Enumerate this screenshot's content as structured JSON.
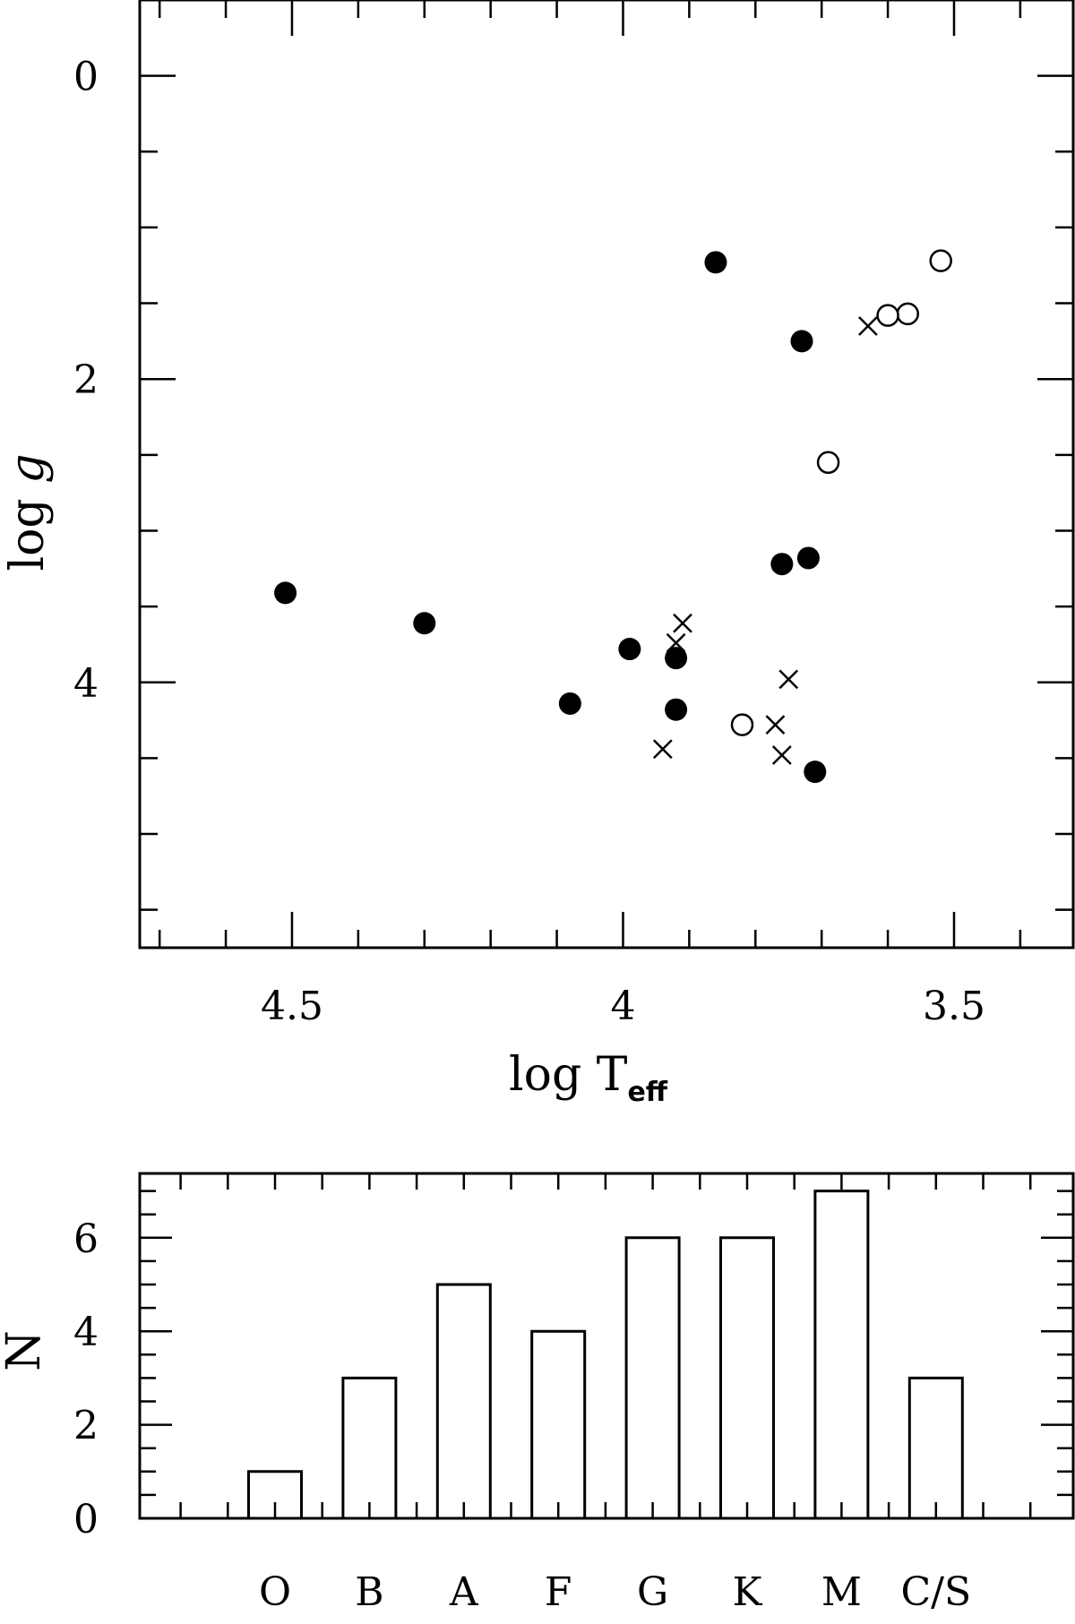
{
  "chart_data": [
    {
      "type": "scatter",
      "xlabel": "log T",
      "xlabel_subscript": "eff",
      "ylabel_prefix": "log ",
      "ylabel_italic": "g",
      "xlim": [
        4.73,
        3.32
      ],
      "ylim": [
        -0.5,
        5.75
      ],
      "x_ticks": [
        4.5,
        4,
        3.5
      ],
      "x_tick_labels": [
        "4.5",
        "4",
        "3.5"
      ],
      "y_ticks": [
        0,
        2,
        4
      ],
      "y_tick_labels": [
        "0",
        "2",
        "4"
      ],
      "grid": false,
      "series": [
        {
          "marker": "filled-circle",
          "points": [
            {
              "x": 4.51,
              "y": 3.41
            },
            {
              "x": 4.3,
              "y": 3.61
            },
            {
              "x": 4.08,
              "y": 4.14
            },
            {
              "x": 3.99,
              "y": 3.78
            },
            {
              "x": 3.92,
              "y": 3.84
            },
            {
              "x": 3.92,
              "y": 4.18
            },
            {
              "x": 3.86,
              "y": 1.23
            },
            {
              "x": 3.73,
              "y": 1.75
            },
            {
              "x": 3.76,
              "y": 3.22
            },
            {
              "x": 3.72,
              "y": 3.18
            },
            {
              "x": 3.71,
              "y": 4.59
            }
          ]
        },
        {
          "marker": "open-circle",
          "points": [
            {
              "x": 3.52,
              "y": 1.22
            },
            {
              "x": 3.57,
              "y": 1.57
            },
            {
              "x": 3.6,
              "y": 1.58
            },
            {
              "x": 3.69,
              "y": 2.55
            },
            {
              "x": 3.82,
              "y": 4.28
            }
          ]
        },
        {
          "marker": "cross",
          "points": [
            {
              "x": 3.63,
              "y": 1.65
            },
            {
              "x": 3.91,
              "y": 3.61
            },
            {
              "x": 3.92,
              "y": 3.74
            },
            {
              "x": 3.75,
              "y": 3.98
            },
            {
              "x": 3.77,
              "y": 4.28
            },
            {
              "x": 3.76,
              "y": 4.48
            },
            {
              "x": 3.94,
              "y": 4.44
            }
          ]
        }
      ]
    },
    {
      "type": "bar",
      "style": "step-histogram",
      "ylabel": "N",
      "categories": [
        "O",
        "B",
        "A",
        "F",
        "G",
        "K",
        "M",
        "C/S"
      ],
      "values": [
        1,
        3,
        5,
        4,
        6,
        6,
        7,
        3
      ],
      "ylim": [
        0,
        7.4
      ],
      "y_ticks": [
        0,
        2,
        4,
        6
      ],
      "y_tick_labels": [
        "0",
        "2",
        "4",
        "6"
      ],
      "grid": false
    }
  ]
}
